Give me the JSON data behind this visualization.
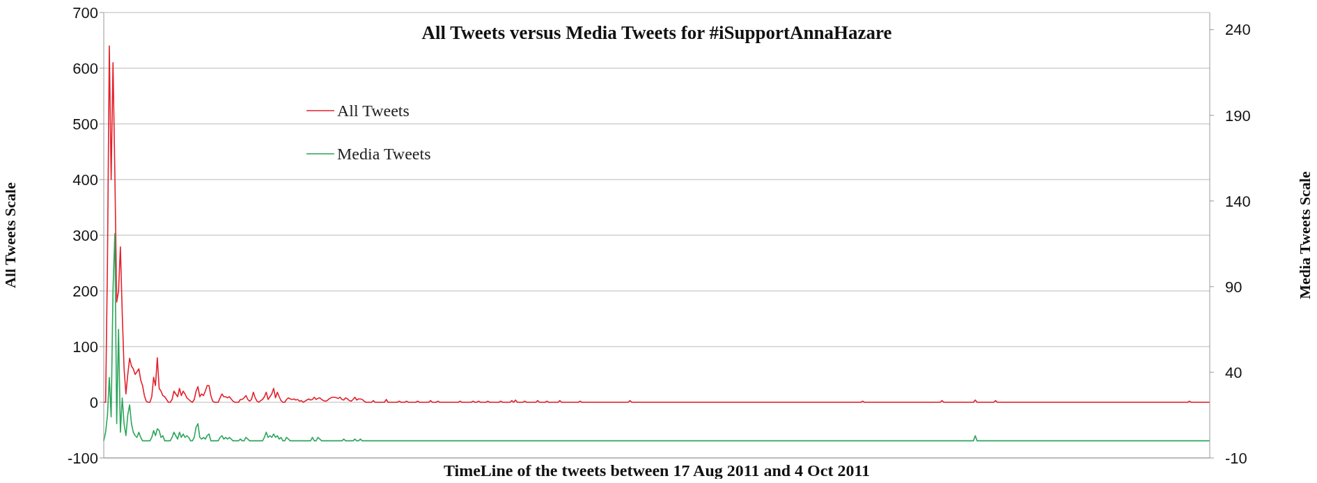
{
  "chart_data": {
    "type": "line",
    "title": "All Tweets versus Media Tweets for #iSupportAnnaHazare",
    "xlabel": "TimeLine of the tweets between 17 Aug 2011 and 4 Oct 2011",
    "ylabel": "All Tweets Scale",
    "y2label": "Media Tweets Scale",
    "categories": [
      null,
      null,
      null,
      null,
      null,
      null,
      null,
      null,
      null,
      null,
      null,
      null,
      null,
      null,
      null,
      null,
      null,
      null,
      null,
      null,
      null,
      null,
      null,
      null,
      null,
      null,
      null,
      null,
      null,
      null,
      null,
      null,
      null,
      null,
      null,
      null,
      null,
      null,
      null,
      null,
      null,
      null,
      null,
      null,
      null,
      null,
      null,
      null,
      null,
      null,
      null,
      null,
      null,
      null,
      null,
      null,
      null,
      null,
      null,
      null,
      null,
      null,
      null,
      null,
      null,
      null,
      null,
      null,
      null,
      null,
      null,
      null,
      null,
      null,
      null,
      null,
      null,
      null,
      null,
      null,
      null,
      null,
      null,
      null,
      null,
      null,
      null,
      null,
      null,
      null,
      null,
      null,
      null,
      null,
      null,
      null,
      null,
      null,
      null,
      null,
      null,
      null,
      null,
      null,
      null,
      null,
      null,
      null,
      null,
      null,
      null,
      null,
      null,
      null,
      null,
      null,
      null,
      null,
      null,
      null,
      null,
      null,
      null,
      null,
      null,
      null,
      null,
      null,
      null,
      null,
      null,
      null,
      null,
      null,
      null,
      null,
      null,
      null,
      null,
      null,
      null,
      null,
      null,
      null,
      null,
      null,
      null,
      null,
      null,
      null,
      null,
      null,
      null,
      null,
      null,
      null,
      null,
      null,
      null,
      null,
      null,
      null,
      null,
      null,
      null,
      null,
      null,
      null,
      null,
      null,
      null,
      null,
      null,
      null,
      null,
      null,
      null,
      null,
      null,
      null,
      null,
      null,
      null,
      null,
      null,
      null,
      null,
      null,
      null,
      null,
      null,
      null,
      null,
      null,
      null,
      null,
      null,
      null,
      null,
      null,
      null,
      null,
      null,
      null,
      null,
      null,
      null,
      null,
      null,
      null,
      null,
      null,
      null,
      null,
      null,
      null,
      null,
      null,
      null,
      null,
      null,
      null,
      null,
      null,
      null,
      null,
      null,
      null,
      null,
      null,
      null,
      null,
      null,
      null,
      null,
      null,
      null,
      null,
      null,
      null,
      null,
      null,
      null,
      null,
      null,
      null,
      null,
      null,
      null,
      null,
      null,
      null,
      null,
      null,
      null,
      null,
      null,
      null,
      null,
      null,
      null,
      null,
      null,
      null,
      null,
      null,
      null,
      null,
      null,
      null,
      null,
      null,
      null,
      null,
      null,
      null,
      null,
      null,
      null,
      null,
      null,
      null,
      null,
      null,
      null,
      null,
      null,
      null,
      null,
      null,
      null,
      null,
      null,
      null,
      null,
      null,
      null,
      null,
      null,
      null,
      null,
      null,
      null,
      null,
      null,
      null,
      null,
      null,
      null,
      null,
      null,
      null,
      null,
      null,
      null,
      null,
      null,
      null,
      null,
      null,
      null,
      null,
      null,
      null,
      null,
      null,
      null,
      null,
      null,
      null,
      null,
      null,
      null,
      null,
      null,
      null,
      null,
      null,
      null,
      null,
      null,
      null,
      null,
      null,
      null,
      null,
      null,
      null,
      null,
      null,
      null,
      null,
      null,
      null,
      null,
      null,
      null,
      null,
      null,
      null,
      null,
      null,
      null,
      null,
      null,
      null,
      null,
      null,
      null,
      null,
      null,
      null,
      null,
      null,
      null,
      null,
      null,
      null,
      null,
      null,
      null,
      null,
      null,
      null,
      null,
      null,
      null,
      null,
      null,
      null,
      null,
      null,
      null,
      null,
      null,
      null,
      null,
      null,
      null,
      null,
      null,
      null,
      null,
      null,
      null,
      null,
      null,
      null,
      null,
      null,
      null,
      null,
      null,
      null,
      null,
      null,
      null,
      null,
      null,
      null,
      null,
      null,
      null,
      null,
      null,
      null,
      null,
      null,
      null,
      null,
      null,
      null,
      null,
      null,
      null,
      null,
      null,
      null,
      null,
      null,
      null,
      null,
      null,
      null,
      null,
      null,
      null,
      null,
      null,
      null,
      null,
      null,
      null,
      null,
      null,
      null,
      null,
      null,
      null,
      null,
      null,
      null,
      null,
      null,
      null,
      null,
      null,
      null,
      null,
      null,
      null,
      null,
      null,
      null,
      null,
      null,
      null,
      null,
      null,
      null,
      null,
      null,
      null,
      null,
      null,
      null,
      null,
      null,
      null,
      null,
      null,
      null,
      null,
      null,
      null,
      null,
      null,
      null,
      null,
      null,
      null,
      null,
      null,
      null,
      null,
      null,
      null,
      null,
      null,
      null,
      null,
      null,
      null,
      null,
      null,
      null,
      null,
      null,
      null,
      null,
      null,
      null,
      null,
      null,
      null,
      null,
      null,
      null,
      null,
      null,
      null,
      null,
      null,
      null,
      null,
      null,
      null,
      null,
      null,
      null,
      null,
      null,
      null,
      null,
      null,
      null,
      null,
      null,
      null,
      null,
      null,
      null,
      null,
      null,
      null,
      null,
      null,
      null,
      null,
      null,
      null,
      null,
      null,
      null,
      null,
      null,
      null,
      null,
      null,
      null,
      null,
      null,
      null,
      null,
      null,
      null,
      null,
      null,
      null,
      null,
      null,
      null,
      null,
      null,
      null,
      null,
      null,
      null,
      null,
      null,
      null,
      null,
      null,
      null,
      null,
      null,
      null,
      null,
      null,
      null
    ],
    "series": [
      {
        "name": "All Tweets",
        "color": "#e3202b",
        "values": [
          0,
          0,
          250,
          640,
          400,
          610,
          412,
          180,
          200,
          279,
          160,
          60,
          15,
          50,
          79,
          65,
          60,
          50,
          55,
          60,
          40,
          30,
          12,
          2,
          0,
          0,
          10,
          45,
          30,
          80,
          25,
          20,
          12,
          10,
          5,
          0,
          0,
          5,
          20,
          15,
          10,
          25,
          12,
          20,
          15,
          8,
          5,
          2,
          0,
          5,
          20,
          28,
          10,
          15,
          12,
          20,
          30,
          30,
          12,
          2,
          0,
          0,
          0,
          8,
          15,
          10,
          10,
          8,
          10,
          6,
          2,
          0,
          0,
          0,
          5,
          5,
          8,
          12,
          5,
          2,
          5,
          18,
          8,
          2,
          0,
          3,
          5,
          10,
          18,
          5,
          10,
          15,
          25,
          8,
          18,
          10,
          3,
          0,
          0,
          5,
          8,
          6,
          5,
          6,
          4,
          5,
          2,
          3,
          0,
          2,
          4,
          6,
          4,
          5,
          9,
          5,
          7,
          8,
          5,
          3,
          2,
          3,
          6,
          8,
          9,
          9,
          8,
          7,
          9,
          5,
          4,
          8,
          6,
          3,
          2,
          5,
          9,
          4,
          6,
          6,
          5,
          2,
          0,
          0,
          0,
          0,
          3,
          0,
          0,
          0,
          0,
          0,
          0,
          5,
          0,
          0,
          0,
          0,
          0,
          0,
          2,
          0,
          0,
          0,
          2,
          0,
          0,
          0,
          0,
          0,
          2,
          0,
          0,
          0,
          0,
          0,
          0,
          3,
          0,
          0,
          0,
          2,
          0,
          0,
          0,
          0,
          0,
          0,
          0,
          0,
          0,
          0,
          0,
          2,
          0,
          0,
          0,
          0,
          0,
          0,
          2,
          0,
          0,
          2,
          0,
          0,
          0,
          0,
          2,
          0,
          0,
          0,
          0,
          0,
          0,
          2,
          0,
          0,
          0,
          0,
          0,
          3,
          0,
          4,
          0,
          0,
          0,
          0,
          2,
          0,
          0,
          0,
          0,
          0,
          0,
          3,
          0,
          0,
          0,
          0,
          2,
          0,
          0,
          0,
          0,
          0,
          0,
          3,
          0,
          0,
          0,
          0,
          0,
          0,
          0,
          0,
          0,
          0,
          2,
          0,
          0,
          0,
          0,
          0,
          0,
          0,
          0,
          0,
          0,
          0,
          0,
          0,
          0,
          0,
          0,
          0,
          0,
          0,
          0,
          0,
          0,
          0,
          0,
          0,
          0,
          3,
          0,
          0,
          0,
          0,
          0,
          0,
          0,
          0,
          0,
          0,
          0,
          0,
          0,
          0,
          0,
          0,
          0,
          0,
          0,
          0,
          0,
          0,
          0,
          0,
          0,
          0,
          0,
          0,
          0,
          0,
          0,
          0,
          0,
          0,
          0,
          0,
          0,
          0,
          0,
          0,
          0,
          0,
          0,
          0,
          0,
          0,
          0,
          0,
          0,
          0,
          0,
          0,
          0,
          0,
          0,
          0,
          0,
          0,
          0,
          0,
          0,
          0,
          0,
          0,
          0,
          0,
          0,
          0,
          0,
          0,
          0,
          0,
          0,
          0,
          0,
          0,
          0,
          0,
          0,
          0,
          0,
          0,
          0,
          0,
          0,
          0,
          0,
          0,
          0,
          0,
          0,
          0,
          0,
          0,
          0,
          0,
          0,
          0,
          0,
          0,
          0,
          0,
          0,
          0,
          0,
          0,
          0,
          0,
          0,
          0,
          0,
          0,
          0,
          0,
          0,
          0,
          0,
          0,
          0,
          0,
          0,
          0,
          0,
          0,
          0,
          2,
          0,
          0,
          0,
          0,
          0,
          0,
          0,
          0,
          0,
          0,
          0,
          0,
          0,
          0,
          0,
          0,
          0,
          0,
          0,
          0,
          0,
          0,
          0,
          0,
          0,
          0,
          0,
          0,
          0,
          0,
          0,
          0,
          0,
          0,
          0,
          0,
          0,
          0,
          0,
          0,
          0,
          0,
          3,
          0,
          0,
          0,
          0,
          0,
          0,
          0,
          0,
          0,
          0,
          0,
          0,
          0,
          0,
          0,
          0,
          0,
          4,
          0,
          0,
          0,
          0,
          0,
          0,
          0,
          0,
          0,
          0,
          3,
          0,
          0,
          0,
          0,
          0,
          0,
          0,
          0,
          0,
          0,
          0,
          0,
          0,
          0,
          0,
          0,
          0,
          0,
          0,
          0,
          0,
          0,
          0,
          0,
          0,
          0,
          0,
          0,
          0,
          0,
          0,
          0,
          0,
          0,
          0,
          0,
          0,
          0,
          0,
          0,
          0,
          0,
          0,
          0,
          0,
          0,
          0,
          0,
          0,
          0,
          0,
          0,
          0,
          0,
          0,
          0,
          0,
          0,
          0,
          0,
          0,
          0,
          0,
          0,
          0,
          0,
          0,
          0,
          0,
          0,
          0,
          0,
          0,
          0,
          0,
          0,
          0,
          0,
          0,
          0,
          0,
          0,
          0,
          0,
          0,
          0,
          0,
          0,
          0,
          0,
          0,
          0,
          0,
          0,
          0,
          0,
          0,
          0,
          0,
          0,
          0,
          0,
          0,
          0,
          2,
          0,
          0,
          0,
          0,
          0,
          0,
          0,
          0,
          0,
          0,
          0
        ]
      },
      {
        "name": "Media Tweets",
        "color": "#2aa55a",
        "axis": "y2",
        "values": [
          0,
          5,
          15,
          37,
          14,
          88,
          121,
          10,
          65,
          5,
          25,
          10,
          3,
          15,
          21,
          10,
          5,
          3,
          2,
          5,
          2,
          0,
          0,
          0,
          0,
          0,
          2,
          6,
          3,
          7,
          6,
          2,
          3,
          0,
          0,
          0,
          0,
          2,
          5,
          3,
          1,
          5,
          2,
          4,
          2,
          3,
          2,
          0,
          0,
          2,
          8,
          10,
          2,
          1,
          2,
          1,
          3,
          4,
          0,
          0,
          0,
          0,
          0,
          2,
          3,
          1,
          2,
          1,
          2,
          1,
          0,
          0,
          0,
          0,
          1,
          0,
          0,
          2,
          1,
          0,
          0,
          0,
          0,
          0,
          0,
          0,
          0,
          2,
          5,
          2,
          3,
          2,
          4,
          2,
          3,
          1,
          2,
          0,
          0,
          2,
          1,
          0,
          0,
          0,
          0,
          0,
          0,
          0,
          0,
          0,
          0,
          0,
          0,
          2,
          0,
          0,
          2,
          1,
          0,
          0,
          0,
          0,
          0,
          0,
          0,
          0,
          0,
          0,
          0,
          0,
          1,
          0,
          0,
          0,
          0,
          0,
          1,
          0,
          0,
          1,
          0,
          0,
          0,
          0,
          0,
          0,
          0,
          0,
          0,
          0,
          0,
          0,
          0,
          0,
          0,
          0,
          0,
          0,
          0,
          0,
          0,
          0,
          0,
          0,
          0,
          0,
          0,
          0,
          0,
          0,
          0,
          0,
          0,
          0,
          0,
          0,
          0,
          0,
          0,
          0,
          0,
          0,
          0,
          0,
          0,
          0,
          0,
          0,
          0,
          0,
          0,
          0,
          0,
          0,
          0,
          0,
          0,
          0,
          0,
          0,
          0,
          0,
          0,
          0,
          0,
          0,
          0,
          0,
          0,
          0,
          0,
          0,
          0,
          0,
          0,
          0,
          0,
          0,
          0,
          0,
          0,
          0,
          0,
          0,
          0,
          0,
          0,
          0,
          0,
          0,
          0,
          0,
          0,
          0,
          0,
          0,
          0,
          0,
          0,
          0,
          0,
          0,
          0,
          0,
          0,
          0,
          0,
          0,
          0,
          0,
          0,
          0,
          0,
          0,
          0,
          0,
          0,
          0,
          0,
          0,
          0,
          0,
          0,
          0,
          0,
          0,
          0,
          0,
          0,
          0,
          0,
          0,
          0,
          0,
          0,
          0,
          0,
          0,
          0,
          0,
          0,
          0,
          0,
          0,
          0,
          0,
          0,
          0,
          0,
          0,
          0,
          0,
          0,
          0,
          0,
          0,
          0,
          0,
          0,
          0,
          0,
          0,
          0,
          0,
          0,
          0,
          0,
          0,
          0,
          0,
          0,
          0,
          0,
          0,
          0,
          0,
          0,
          0,
          0,
          0,
          0,
          0,
          0,
          0,
          0,
          0,
          0,
          0,
          0,
          0,
          0,
          0,
          0,
          0,
          0,
          0,
          0,
          0,
          0,
          0,
          0,
          0,
          0,
          0,
          0,
          0,
          0,
          0,
          0,
          0,
          0,
          0,
          0,
          0,
          0,
          0,
          0,
          0,
          0,
          0,
          0,
          0,
          0,
          0,
          0,
          0,
          0,
          0,
          0,
          0,
          0,
          0,
          0,
          0,
          0,
          0,
          0,
          0,
          0,
          0,
          0,
          0,
          0,
          0,
          0,
          0,
          0,
          0,
          0,
          0,
          0,
          0,
          0,
          0,
          0,
          0,
          0,
          0,
          0,
          0,
          0,
          0,
          0,
          0,
          0,
          0,
          0,
          0,
          0,
          0,
          0,
          0,
          0,
          0,
          0,
          0,
          0,
          0,
          0,
          0,
          0,
          0,
          0,
          0,
          0,
          0,
          0,
          0,
          0,
          0,
          0,
          0,
          0,
          0,
          0,
          0,
          0,
          0,
          0,
          0,
          0,
          0,
          0,
          0,
          0,
          0,
          0,
          0,
          0,
          0,
          0,
          0,
          0,
          0,
          0,
          0,
          0,
          0,
          0,
          0,
          0,
          0,
          0,
          0,
          0,
          0,
          0,
          0,
          0,
          0,
          0,
          0,
          3,
          0,
          0,
          0,
          0,
          0,
          0,
          0,
          0,
          0,
          0,
          0,
          0,
          0,
          0,
          0,
          0,
          0,
          0,
          0,
          0,
          0,
          0,
          0,
          0,
          0,
          0,
          0,
          0,
          0,
          0,
          0,
          0,
          0,
          0,
          0,
          0,
          0,
          0,
          0,
          0,
          0,
          0,
          0,
          0,
          0,
          0,
          0,
          0,
          0,
          0,
          0,
          0,
          0,
          0,
          0,
          0,
          0,
          0,
          0,
          0,
          0,
          0,
          0,
          0,
          0,
          0,
          0,
          0,
          0,
          0,
          0,
          0,
          0,
          0,
          0,
          0,
          0,
          0,
          0,
          0,
          0,
          0,
          0,
          0,
          0,
          0,
          0,
          0,
          0,
          0,
          0,
          0,
          0,
          0,
          0,
          0,
          0,
          0,
          0,
          0,
          0,
          0,
          0,
          0,
          0,
          0,
          0,
          0,
          0,
          0,
          0,
          0,
          0,
          0,
          0,
          0,
          0,
          0,
          0,
          0,
          0,
          0,
          0,
          0,
          0,
          0,
          0
        ]
      }
    ],
    "ylim": [
      -100,
      700
    ],
    "yticks": [
      -100,
      0,
      100,
      200,
      300,
      400,
      500,
      600,
      700
    ],
    "y2lim": [
      -10,
      250
    ],
    "y2ticks": [
      -10,
      40,
      90,
      140,
      190,
      240
    ],
    "grid": "y",
    "legend": "top left"
  }
}
